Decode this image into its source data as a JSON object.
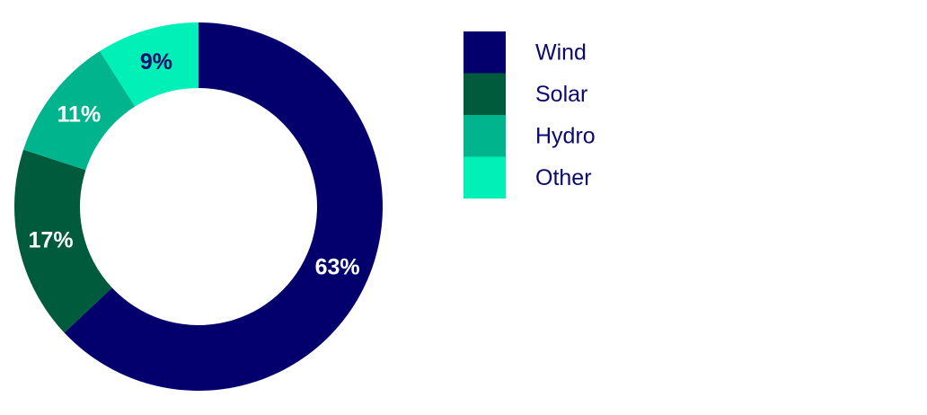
{
  "chart_data": {
    "type": "donut",
    "categories": [
      "Wind",
      "Solar",
      "Hydro",
      "Other"
    ],
    "values": [
      63,
      17,
      11,
      9
    ],
    "value_labels": [
      "63%",
      "17%",
      "11%",
      "9%"
    ],
    "colors": [
      "#03006e",
      "#005a3c",
      "#00b48e",
      "#00f0b8"
    ]
  }
}
